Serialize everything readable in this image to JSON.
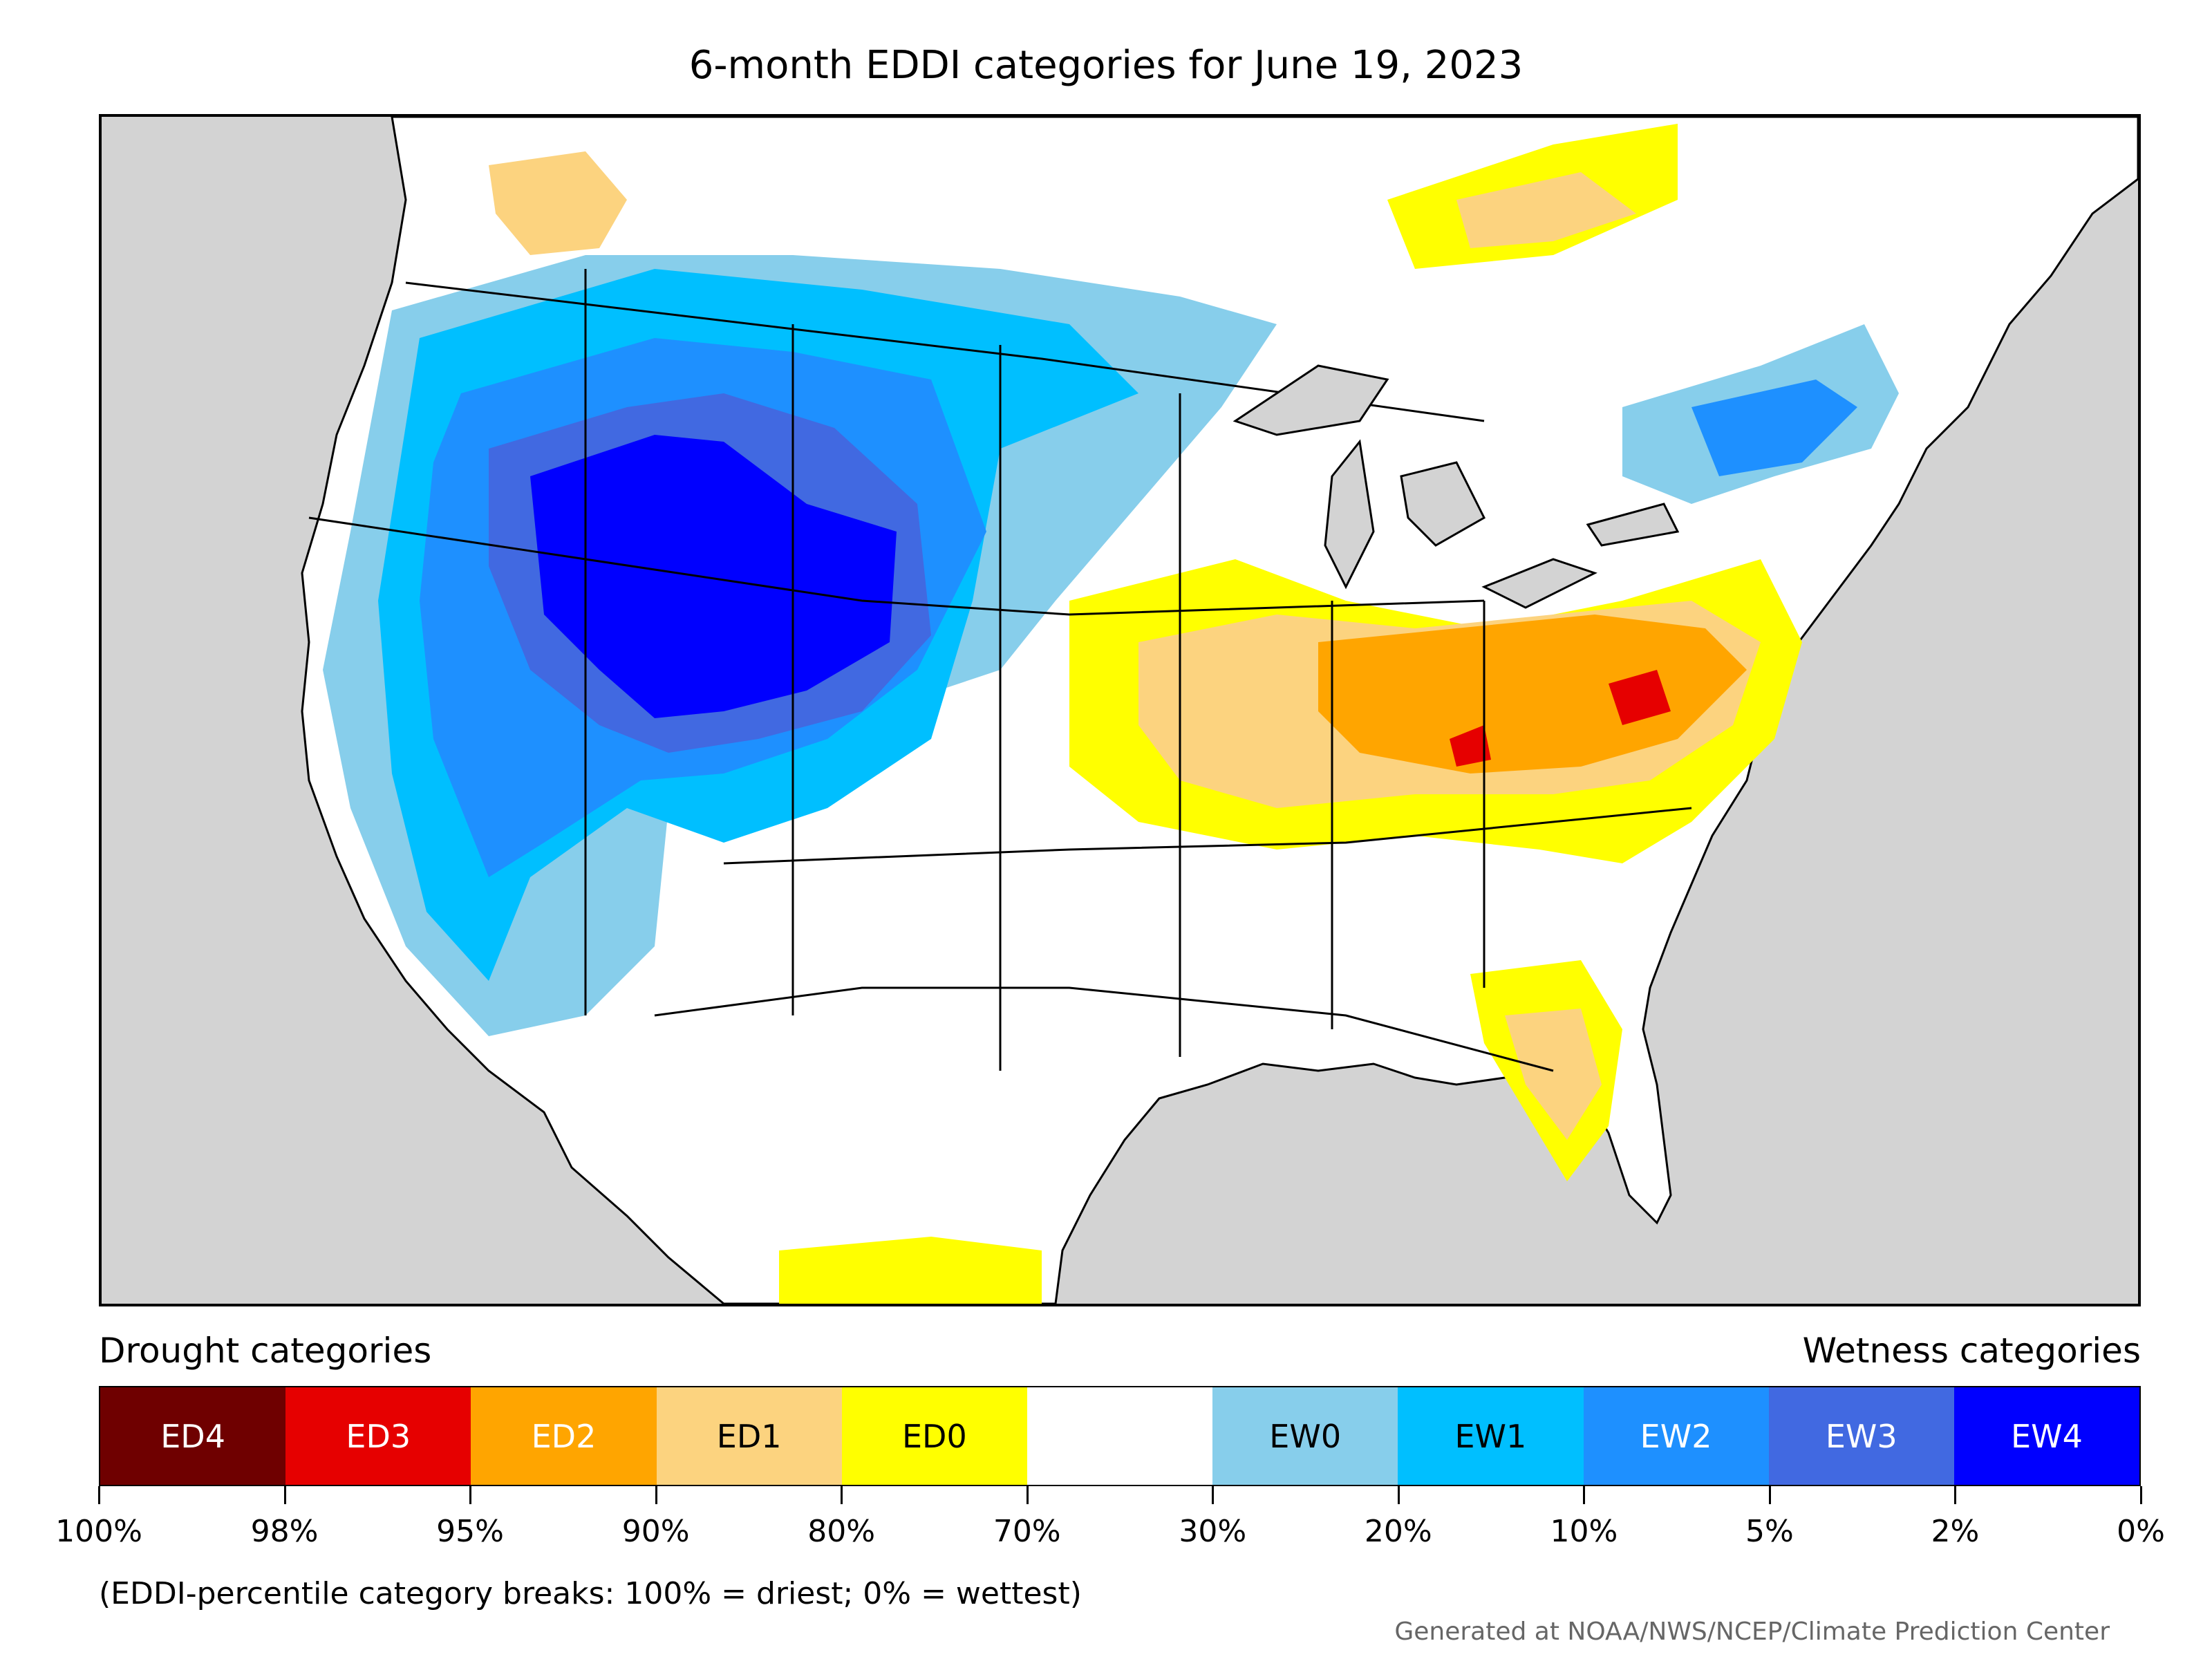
{
  "title": "6-month EDDI categories for June 19, 2023",
  "colors": {
    "land": "#ffffff",
    "ocean": "#d3d3d3",
    "boundary": "#000000"
  },
  "legend": {
    "left_heading": "Drought categories",
    "right_heading": "Wetness categories",
    "categories": [
      {
        "label": "ED4",
        "color": "#6f0000",
        "text_color": "#ffffff"
      },
      {
        "label": "ED3",
        "color": "#e60000",
        "text_color": "#ffffff"
      },
      {
        "label": "ED2",
        "color": "#ffa500",
        "text_color": "#ffffff"
      },
      {
        "label": "ED1",
        "color": "#fcd37f",
        "text_color": "#000000"
      },
      {
        "label": "ED0",
        "color": "#ffff00",
        "text_color": "#000000"
      },
      {
        "label": "",
        "color": "#ffffff",
        "text_color": "#000000"
      },
      {
        "label": "EW0",
        "color": "#87ceeb",
        "text_color": "#000000"
      },
      {
        "label": "EW1",
        "color": "#00bfff",
        "text_color": "#000000"
      },
      {
        "label": "EW2",
        "color": "#1e90ff",
        "text_color": "#ffffff"
      },
      {
        "label": "EW3",
        "color": "#4169e1",
        "text_color": "#ffffff"
      },
      {
        "label": "EW4",
        "color": "#0000ff",
        "text_color": "#ffffff"
      }
    ],
    "breaks": [
      "100%",
      "98%",
      "95%",
      "90%",
      "80%",
      "70%",
      "30%",
      "20%",
      "10%",
      "5%",
      "2%",
      "0%"
    ]
  },
  "note": "(EDDI-percentile category breaks: 100% = driest; 0% = wettest)",
  "credit": "Generated at NOAA/NWS/NCEP/Climate Prediction Center"
}
